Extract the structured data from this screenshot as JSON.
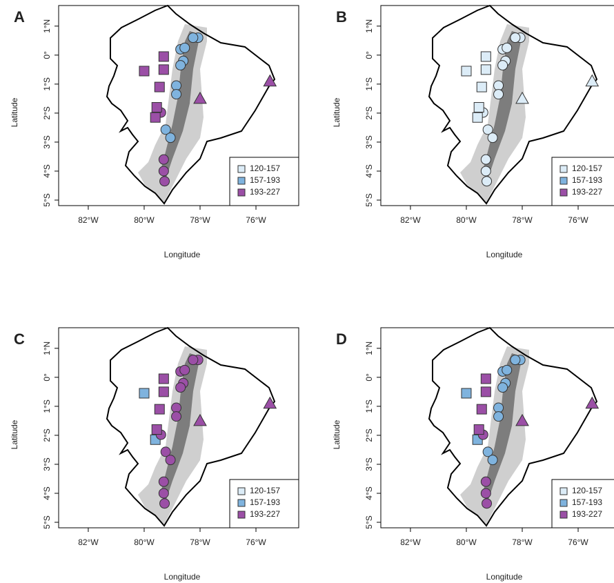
{
  "chart_data": [
    {
      "type": "scatter",
      "panel": "A",
      "xlabel": "Longitude",
      "ylabel": "Latitude",
      "xlim": [
        -83.06,
        -74.47
      ],
      "ylim": [
        -5.19,
        1.71
      ],
      "xticks": [
        {
          "value": -82,
          "label": "82°W"
        },
        {
          "value": -80,
          "label": "80°W"
        },
        {
          "value": -78,
          "label": "78°W"
        },
        {
          "value": -76,
          "label": "76°W"
        }
      ],
      "yticks": [
        {
          "value": 1,
          "label": "1°N"
        },
        {
          "value": 0,
          "label": "0°"
        },
        {
          "value": -1,
          "label": "1°S"
        },
        {
          "value": -2,
          "label": "2°S"
        },
        {
          "value": -3,
          "label": "3°S"
        },
        {
          "value": -4,
          "label": "4°S"
        },
        {
          "value": -5,
          "label": "5°S"
        }
      ],
      "series": [
        {
          "name": "120-157",
          "color": "#dcecf7",
          "x": [],
          "y": [],
          "marker": []
        },
        {
          "name": "157-193",
          "color": "#7fb3de",
          "x": [
            -78.07,
            -78.25,
            -78.7,
            -78.55,
            -78.6,
            -78.7,
            -78.85,
            -78.85,
            -79.23,
            -79.06
          ],
          "y": [
            0.6,
            0.6,
            0.2,
            0.25,
            -0.2,
            -0.35,
            -1.05,
            -1.35,
            -2.57,
            -2.85
          ],
          "marker": [
            "circle",
            "circle",
            "circle",
            "circle",
            "circle",
            "circle",
            "circle",
            "circle",
            "circle",
            "circle"
          ]
        },
        {
          "name": "193-227",
          "color": "#9b4fa6",
          "x": [
            -79.4,
            -79.3,
            -79.3,
            -79.27,
            -79.3,
            -80.0,
            -79.3,
            -79.45,
            -79.55,
            -79.6,
            -78.0,
            -75.5
          ],
          "y": [
            -1.98,
            -3.6,
            -4.0,
            -4.35,
            -0.05,
            -0.55,
            -0.5,
            -1.1,
            -1.8,
            -2.15,
            -1.5,
            -0.9
          ],
          "marker": [
            "circle",
            "circle",
            "circle",
            "circle",
            "square",
            "square",
            "square",
            "square",
            "square",
            "square",
            "triangle",
            "triangle"
          ]
        }
      ]
    },
    {
      "type": "scatter",
      "panel": "B",
      "xlabel": "Longitude",
      "ylabel": "Latitude",
      "xlim": [
        -83.06,
        -74.47
      ],
      "ylim": [
        -5.19,
        1.71
      ],
      "xticks": [
        {
          "value": -82,
          "label": "82°W"
        },
        {
          "value": -80,
          "label": "80°W"
        },
        {
          "value": -78,
          "label": "78°W"
        },
        {
          "value": -76,
          "label": "76°W"
        }
      ],
      "yticks": [
        {
          "value": 1,
          "label": "1°N"
        },
        {
          "value": 0,
          "label": "0°"
        },
        {
          "value": -1,
          "label": "1°S"
        },
        {
          "value": -2,
          "label": "2°S"
        },
        {
          "value": -3,
          "label": "3°S"
        },
        {
          "value": -4,
          "label": "4°S"
        },
        {
          "value": -5,
          "label": "5°S"
        }
      ],
      "series": [
        {
          "name": "120-157",
          "color": "#dcecf7",
          "x": [
            -78.07,
            -78.25,
            -78.7,
            -78.55,
            -78.6,
            -78.7,
            -78.85,
            -78.85,
            -79.23,
            -79.06,
            -79.4,
            -79.3,
            -79.3,
            -79.27,
            -79.3,
            -80.0,
            -79.3,
            -79.45,
            -79.55,
            -79.6,
            -78.0,
            -75.5
          ],
          "y": [
            0.6,
            0.6,
            0.2,
            0.25,
            -0.2,
            -0.35,
            -1.05,
            -1.35,
            -2.57,
            -2.85,
            -1.98,
            -3.6,
            -4.0,
            -4.35,
            -0.05,
            -0.55,
            -0.5,
            -1.1,
            -1.8,
            -2.15,
            -1.5,
            -0.9
          ],
          "marker": [
            "circle",
            "circle",
            "circle",
            "circle",
            "circle",
            "circle",
            "circle",
            "circle",
            "circle",
            "circle",
            "circle",
            "circle",
            "circle",
            "circle",
            "square",
            "square",
            "square",
            "square",
            "square",
            "square",
            "triangle",
            "triangle"
          ]
        },
        {
          "name": "157-193",
          "color": "#7fb3de",
          "x": [],
          "y": [],
          "marker": []
        },
        {
          "name": "193-227",
          "color": "#9b4fa6",
          "x": [],
          "y": [],
          "marker": []
        }
      ]
    },
    {
      "type": "scatter",
      "panel": "C",
      "xlabel": "Longitude",
      "ylabel": "Latitude",
      "xlim": [
        -83.06,
        -74.47
      ],
      "ylim": [
        -5.19,
        1.71
      ],
      "xticks": [
        {
          "value": -82,
          "label": "82°W"
        },
        {
          "value": -80,
          "label": "80°W"
        },
        {
          "value": -78,
          "label": "78°W"
        },
        {
          "value": -76,
          "label": "76°W"
        }
      ],
      "yticks": [
        {
          "value": 1,
          "label": "1°N"
        },
        {
          "value": 0,
          "label": "0°"
        },
        {
          "value": -1,
          "label": "1°S"
        },
        {
          "value": -2,
          "label": "2°S"
        },
        {
          "value": -3,
          "label": "3°S"
        },
        {
          "value": -4,
          "label": "4°S"
        },
        {
          "value": -5,
          "label": "5°S"
        }
      ],
      "series": [
        {
          "name": "120-157",
          "color": "#dcecf7",
          "x": [],
          "y": [],
          "marker": []
        },
        {
          "name": "157-193",
          "color": "#7fb3de",
          "x": [
            -80.0,
            -79.6
          ],
          "y": [
            -0.55,
            -2.15
          ],
          "marker": [
            "square",
            "square"
          ]
        },
        {
          "name": "193-227",
          "color": "#9b4fa6",
          "x": [
            -78.07,
            -78.25,
            -78.7,
            -78.55,
            -78.6,
            -78.7,
            -78.85,
            -78.85,
            -79.23,
            -79.06,
            -79.4,
            -79.3,
            -79.3,
            -79.27,
            -79.3,
            -79.3,
            -79.45,
            -79.55,
            -78.0,
            -75.5
          ],
          "y": [
            0.6,
            0.6,
            0.2,
            0.25,
            -0.2,
            -0.35,
            -1.05,
            -1.35,
            -2.57,
            -2.85,
            -1.98,
            -3.6,
            -4.0,
            -4.35,
            -0.05,
            -0.5,
            -1.1,
            -1.8,
            -1.5,
            -0.9
          ],
          "marker": [
            "circle",
            "circle",
            "circle",
            "circle",
            "circle",
            "circle",
            "circle",
            "circle",
            "circle",
            "circle",
            "circle",
            "circle",
            "circle",
            "circle",
            "square",
            "square",
            "square",
            "square",
            "triangle",
            "triangle"
          ]
        }
      ]
    },
    {
      "type": "scatter",
      "panel": "D",
      "xlabel": "Longitude",
      "ylabel": "Latitude",
      "xlim": [
        -83.06,
        -74.47
      ],
      "ylim": [
        -5.19,
        1.71
      ],
      "xticks": [
        {
          "value": -82,
          "label": "82°W"
        },
        {
          "value": -80,
          "label": "80°W"
        },
        {
          "value": -78,
          "label": "78°W"
        },
        {
          "value": -76,
          "label": "76°W"
        }
      ],
      "yticks": [
        {
          "value": 1,
          "label": "1°N"
        },
        {
          "value": 0,
          "label": "0°"
        },
        {
          "value": -1,
          "label": "1°S"
        },
        {
          "value": -2,
          "label": "2°S"
        },
        {
          "value": -3,
          "label": "3°S"
        },
        {
          "value": -4,
          "label": "4°S"
        },
        {
          "value": -5,
          "label": "5°S"
        }
      ],
      "series": [
        {
          "name": "120-157",
          "color": "#dcecf7",
          "x": [],
          "y": [],
          "marker": []
        },
        {
          "name": "157-193",
          "color": "#7fb3de",
          "x": [
            -78.07,
            -78.25,
            -78.7,
            -78.55,
            -78.6,
            -78.7,
            -78.85,
            -78.85,
            -79.23,
            -79.06,
            -80.0,
            -79.6
          ],
          "y": [
            0.6,
            0.6,
            0.2,
            0.25,
            -0.2,
            -0.35,
            -1.05,
            -1.35,
            -2.57,
            -2.85,
            -0.55,
            -2.15
          ],
          "marker": [
            "circle",
            "circle",
            "circle",
            "circle",
            "circle",
            "circle",
            "circle",
            "circle",
            "circle",
            "circle",
            "square",
            "square"
          ]
        },
        {
          "name": "193-227",
          "color": "#9b4fa6",
          "x": [
            -79.4,
            -79.3,
            -79.3,
            -79.27,
            -79.3,
            -79.3,
            -79.45,
            -79.55,
            -78.0,
            -75.5
          ],
          "y": [
            -1.98,
            -3.6,
            -4.0,
            -4.35,
            -0.05,
            -0.5,
            -1.1,
            -1.8,
            -1.5,
            -0.9
          ],
          "marker": [
            "circle",
            "circle",
            "circle",
            "circle",
            "square",
            "square",
            "square",
            "square",
            "triangle",
            "triangle"
          ]
        }
      ]
    }
  ]
}
